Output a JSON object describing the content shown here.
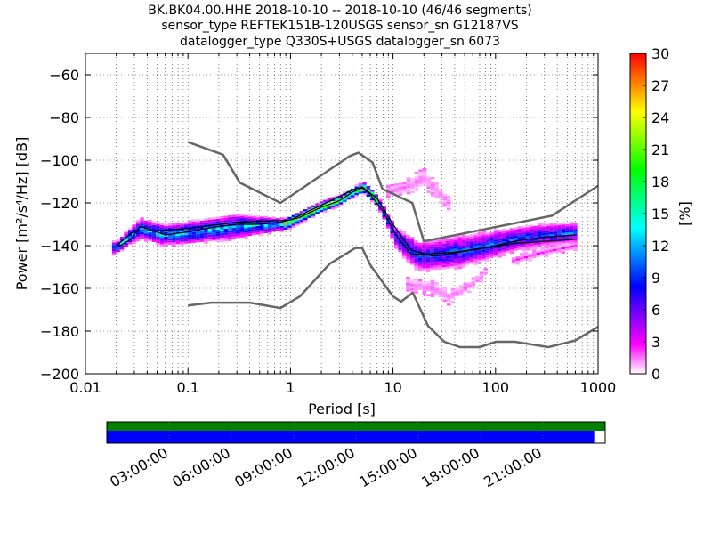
{
  "chart_data": {
    "type": "heatmap",
    "title_lines": [
      "BK.BK04.00.HHE   2018-10-10 -- 2018-10-10  (46/46 segments)",
      "sensor_type REFTEK151B-120USGS sensor_sn G12187VS",
      "datalogger_type Q330S+USGS datalogger_sn 6073"
    ],
    "xlabel": "Period [s]",
    "ylabel": "Power [m²/s⁴/Hz] [dB]",
    "xscale": "log",
    "xlim": [
      0.01,
      1000
    ],
    "ylim": [
      -200,
      -50
    ],
    "xticks": [
      {
        "value": 0.01,
        "label": "0.01"
      },
      {
        "value": 0.1,
        "label": "0.1"
      },
      {
        "value": 1,
        "label": "1"
      },
      {
        "value": 10,
        "label": "10"
      },
      {
        "value": 100,
        "label": "100"
      },
      {
        "value": 1000,
        "label": "1000"
      }
    ],
    "yticks": [
      {
        "value": -60,
        "label": "−60"
      },
      {
        "value": -80,
        "label": "−80"
      },
      {
        "value": -100,
        "label": "−100"
      },
      {
        "value": -120,
        "label": "−120"
      },
      {
        "value": -140,
        "label": "−140"
      },
      {
        "value": -160,
        "label": "−160"
      },
      {
        "value": -180,
        "label": "−180"
      },
      {
        "value": -200,
        "label": "−200"
      }
    ],
    "grid": true,
    "colorbar": {
      "label": "[%]",
      "range": [
        0,
        30
      ],
      "ticks": [
        {
          "value": 0,
          "label": "0"
        },
        {
          "value": 3,
          "label": "3"
        },
        {
          "value": 6,
          "label": "6"
        },
        {
          "value": 9,
          "label": "9"
        },
        {
          "value": 12,
          "label": "12"
        },
        {
          "value": 15,
          "label": "15"
        },
        {
          "value": 18,
          "label": "18"
        },
        {
          "value": 21,
          "label": "21"
        },
        {
          "value": 24,
          "label": "24"
        },
        {
          "value": 27,
          "label": "27"
        },
        {
          "value": 30,
          "label": "30"
        }
      ],
      "colormap": [
        "#ffffff",
        "#ff00ff",
        "#8000ff",
        "#0000ff",
        "#0080ff",
        "#00ffff",
        "#00ff80",
        "#00ff00",
        "#80ff00",
        "#ffff00",
        "#ff8000",
        "#ff0000"
      ]
    },
    "nhnm": {
      "name": "NHNM",
      "color": "#666666",
      "points": [
        [
          0.1,
          -91.5
        ],
        [
          0.22,
          -97.4
        ],
        [
          0.32,
          -110.5
        ],
        [
          0.8,
          -120
        ],
        [
          3.8,
          -98
        ],
        [
          4.6,
          -96.5
        ],
        [
          6.3,
          -101
        ],
        [
          7.9,
          -113.5
        ],
        [
          15.4,
          -120
        ],
        [
          20,
          -138
        ],
        [
          354.8,
          -126
        ],
        [
          1000,
          -112
        ]
      ]
    },
    "nlnm": {
      "name": "NLNM",
      "color": "#666666",
      "points": [
        [
          0.1,
          -168
        ],
        [
          0.17,
          -166.7
        ],
        [
          0.4,
          -166.7
        ],
        [
          0.8,
          -169.2
        ],
        [
          1.24,
          -163.7
        ],
        [
          2.4,
          -148.6
        ],
        [
          4.3,
          -141.1
        ],
        [
          5,
          -141.1
        ],
        [
          6,
          -149
        ],
        [
          10,
          -163.8
        ],
        [
          12,
          -166.2
        ],
        [
          15.6,
          -162.1
        ],
        [
          21.9,
          -177.5
        ],
        [
          31.6,
          -185
        ],
        [
          45,
          -187.5
        ],
        [
          70,
          -187.5
        ],
        [
          101,
          -185
        ],
        [
          154,
          -185
        ],
        [
          328,
          -187.5
        ],
        [
          600,
          -184.4
        ],
        [
          1000,
          -178
        ]
      ]
    },
    "mode": {
      "name": "mode",
      "color": "#000000",
      "points": [
        [
          0.02,
          -141
        ],
        [
          0.028,
          -137
        ],
        [
          0.034,
          -131
        ],
        [
          0.04,
          -132
        ],
        [
          0.06,
          -135
        ],
        [
          0.1,
          -133.5
        ],
        [
          0.2,
          -131
        ],
        [
          0.3,
          -130
        ],
        [
          0.5,
          -130
        ],
        [
          0.8,
          -129
        ],
        [
          1.2,
          -127
        ],
        [
          2,
          -122
        ],
        [
          3,
          -119
        ],
        [
          4,
          -115
        ],
        [
          5,
          -113
        ],
        [
          6,
          -116
        ],
        [
          8,
          -124
        ],
        [
          11,
          -136
        ],
        [
          15,
          -144
        ],
        [
          20,
          -144
        ],
        [
          40,
          -143
        ],
        [
          80,
          -141
        ],
        [
          150,
          -138
        ],
        [
          300,
          -136
        ],
        [
          600,
          -135
        ]
      ]
    },
    "mean": {
      "name": "mean",
      "color": "#000000",
      "points": [
        [
          0.02,
          -140
        ],
        [
          0.03,
          -133
        ],
        [
          0.05,
          -133
        ],
        [
          0.1,
          -132
        ],
        [
          0.3,
          -129
        ],
        [
          1,
          -128
        ],
        [
          2,
          -121
        ],
        [
          4,
          -114
        ],
        [
          5,
          -112.5
        ],
        [
          7,
          -118
        ],
        [
          10,
          -130
        ],
        [
          15,
          -142
        ],
        [
          25,
          -145
        ],
        [
          60,
          -142
        ],
        [
          150,
          -139
        ],
        [
          600,
          -137
        ]
      ]
    },
    "occurrence_bands": [
      {
        "x_range": [
          0.019,
          0.9
        ],
        "center": [
          [
            0.02,
            -141
          ],
          [
            0.034,
            -132
          ],
          [
            0.06,
            -135
          ],
          [
            0.1,
            -134
          ],
          [
            0.3,
            -131
          ],
          [
            0.9,
            -130
          ]
        ],
        "halfwidth": [
          [
            0.02,
            3
          ],
          [
            0.035,
            5
          ],
          [
            0.3,
            6
          ],
          [
            0.9,
            3
          ]
        ],
        "max_percent": 16
      },
      {
        "x_range": [
          0.9,
          7.5
        ],
        "center": [
          [
            0.9,
            -130
          ],
          [
            2,
            -122
          ],
          [
            3,
            -119
          ],
          [
            4.5,
            -114
          ],
          [
            5.2,
            -113
          ],
          [
            6.5,
            -117
          ],
          [
            7.5,
            -121
          ]
        ],
        "halfwidth": [
          [
            0.9,
            3
          ],
          [
            4,
            2.5
          ],
          [
            7.5,
            3
          ]
        ],
        "max_percent": 28
      },
      {
        "x_range": [
          7.5,
          600
        ],
        "center": [
          [
            7.5,
            -121
          ],
          [
            11,
            -137
          ],
          [
            18,
            -145
          ],
          [
            30,
            -144
          ],
          [
            70,
            -141
          ],
          [
            150,
            -137
          ],
          [
            300,
            -135
          ],
          [
            600,
            -134
          ]
        ],
        "halfwidth": [
          [
            7.5,
            3
          ],
          [
            15,
            7
          ],
          [
            40,
            8
          ],
          [
            150,
            6
          ],
          [
            600,
            5
          ]
        ],
        "max_percent": 12
      },
      {
        "x_range": [
          9,
          35
        ],
        "center": [
          [
            9,
            -115
          ],
          [
            15,
            -112
          ],
          [
            20,
            -108
          ],
          [
            28,
            -115
          ],
          [
            35,
            -120
          ]
        ],
        "halfwidth": [
          [
            9,
            3
          ],
          [
            20,
            5
          ],
          [
            35,
            3
          ]
        ],
        "max_percent": 2
      },
      {
        "x_range": [
          14,
          80
        ],
        "center": [
          [
            14,
            -158
          ],
          [
            25,
            -160
          ],
          [
            35,
            -164
          ],
          [
            60,
            -158
          ],
          [
            80,
            -153
          ]
        ],
        "halfwidth": [
          [
            14,
            3
          ],
          [
            30,
            4
          ],
          [
            80,
            2
          ]
        ],
        "max_percent": 2
      },
      {
        "x_range": [
          150,
          600
        ],
        "center": [
          [
            150,
            -147
          ],
          [
            300,
            -143
          ],
          [
            600,
            -140
          ]
        ],
        "halfwidth": [
          [
            150,
            2
          ],
          [
            600,
            2
          ]
        ],
        "max_percent": 3
      }
    ],
    "coverage": {
      "time_tick_labels": [
        "03:00:00",
        "06:00:00",
        "09:00:00",
        "12:00:00",
        "15:00:00",
        "18:00:00",
        "21:00:00"
      ],
      "time_tick_hours": [
        3,
        6,
        9,
        12,
        15,
        18,
        21
      ],
      "total_hours": 24,
      "data_coverage_fraction": 1.0,
      "psd_coverage_fraction": 0.978,
      "data_color": "#007f00",
      "psd_color": "#0000ff"
    }
  }
}
